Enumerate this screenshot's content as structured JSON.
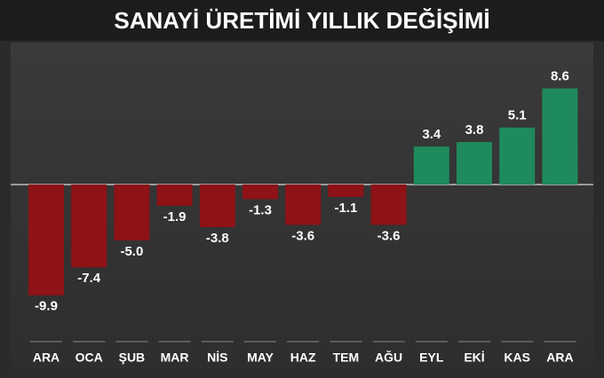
{
  "chart_data": {
    "type": "bar",
    "title": "SANAYİ ÜRETİMİ YILLIK DEĞİŞİMİ",
    "categories": [
      "ARA",
      "OCA",
      "ŞUB",
      "MAR",
      "NİS",
      "MAY",
      "HAZ",
      "TEM",
      "AĞU",
      "EYL",
      "EKİ",
      "KAS",
      "ARA"
    ],
    "values": [
      -9.9,
      -7.4,
      -5.0,
      -1.9,
      -3.8,
      -1.3,
      -3.6,
      -1.1,
      -3.6,
      3.4,
      3.8,
      5.1,
      8.6
    ],
    "value_labels": [
      "-9.9",
      "-7.4",
      "-5.0",
      "-1.9",
      "-3.8",
      "-1.3",
      "-3.6",
      "-1.1",
      "-3.6",
      "3.4",
      "3.8",
      "5.1",
      "8.6"
    ],
    "colors": [
      "#8e1216",
      "#8e1216",
      "#8e1216",
      "#8e1216",
      "#8e1216",
      "#8e1216",
      "#8e1216",
      "#8e1216",
      "#8e1216",
      "#1f8a5c",
      "#1f8a5c",
      "#1f8a5c",
      "#1f8a5c"
    ]
  }
}
